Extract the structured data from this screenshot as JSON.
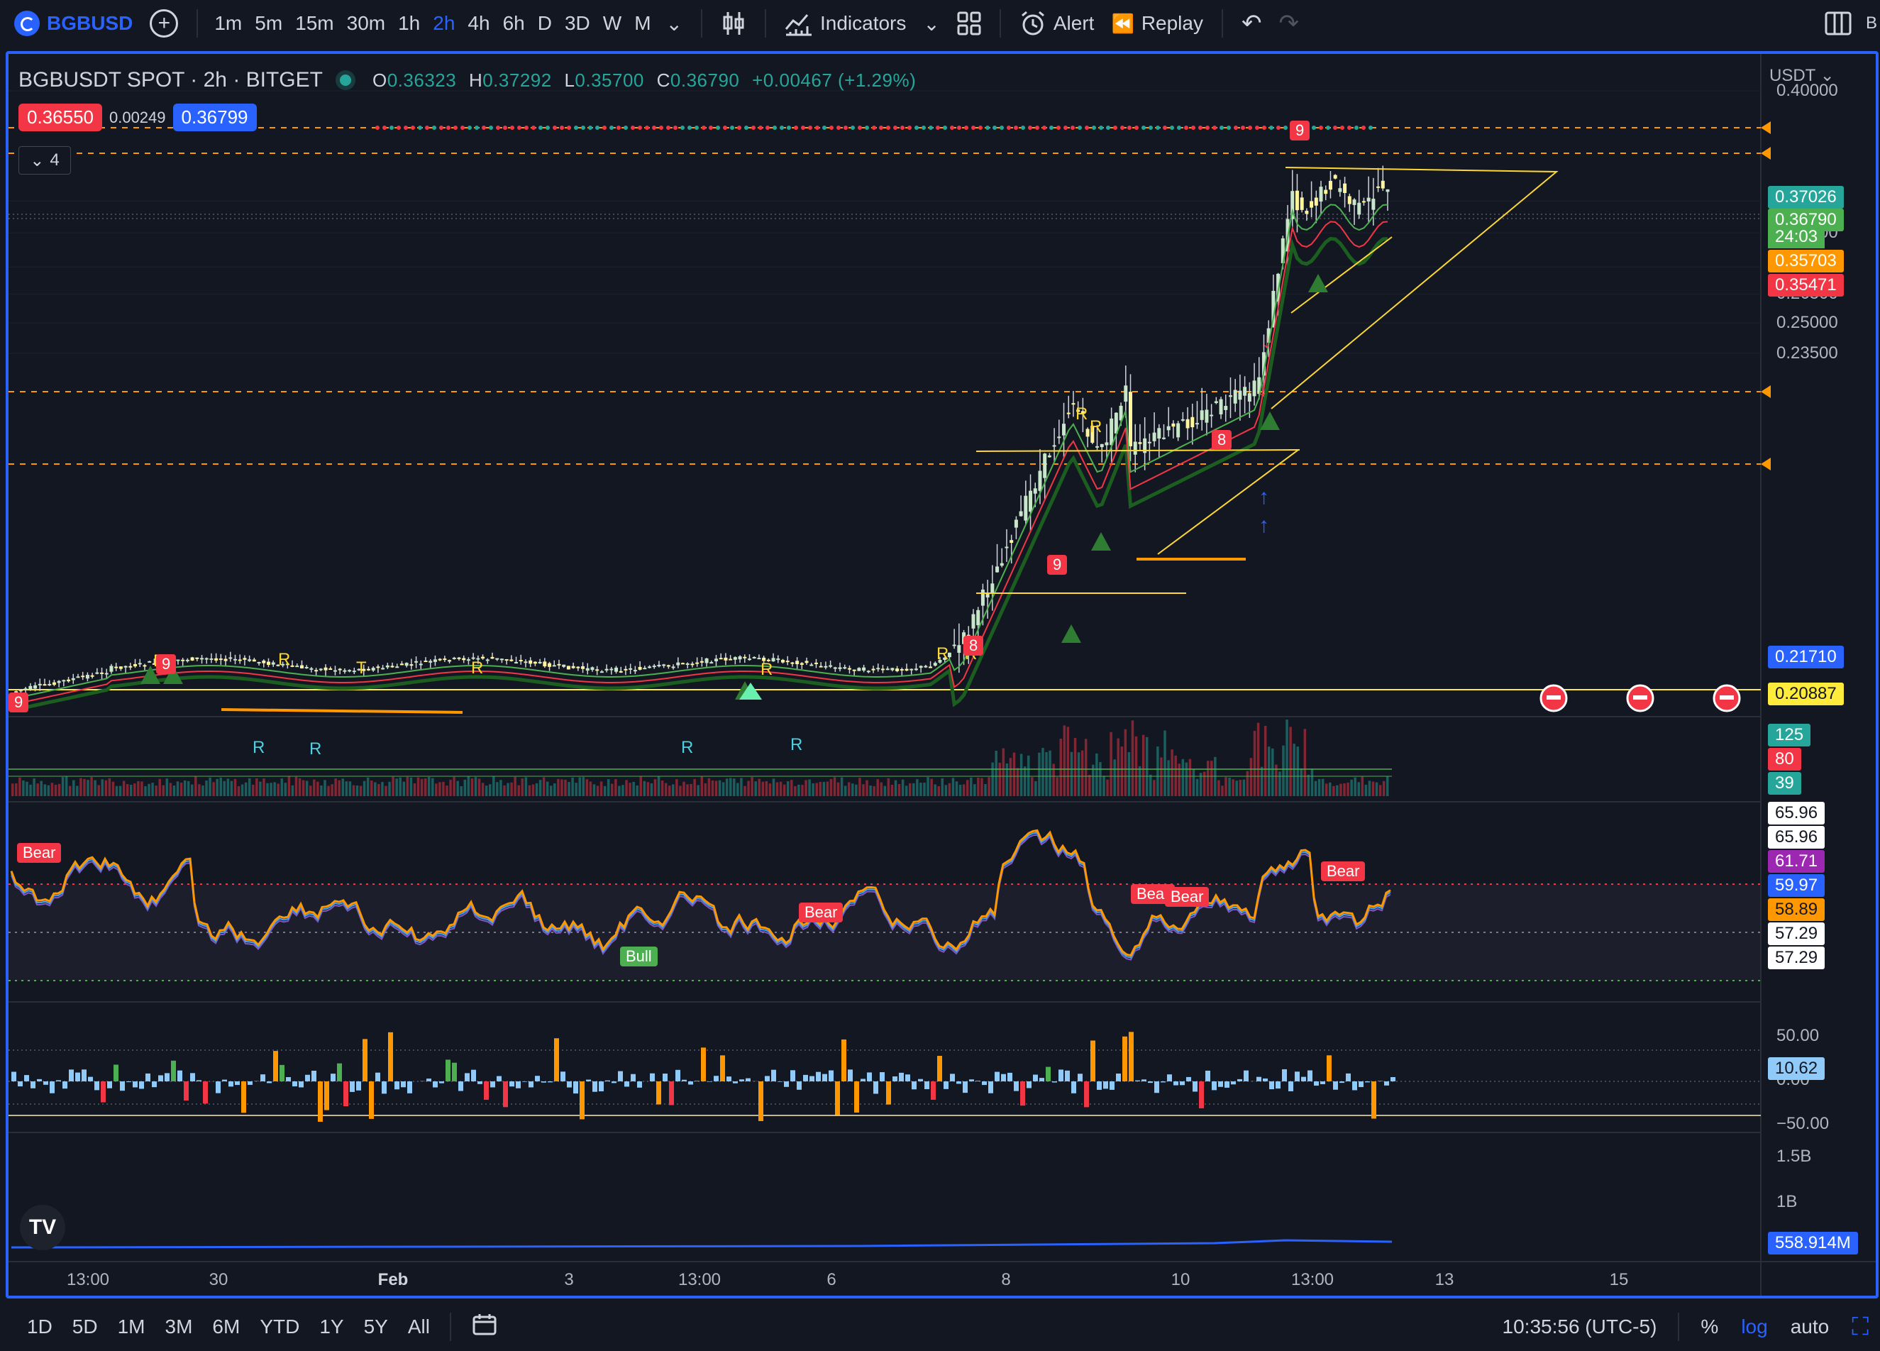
{
  "toolbar": {
    "symbol": "BGBUSD",
    "intervals": [
      "1m",
      "5m",
      "15m",
      "30m",
      "1h",
      "2h",
      "4h",
      "6h",
      "D",
      "3D",
      "W",
      "M"
    ],
    "active_interval": "2h",
    "indicators_label": "Indicators",
    "alert_label": "Alert",
    "replay_label": "Replay",
    "right_cut_text": "B",
    "icons": [
      "add-symbol-icon",
      "chevron-down-icon",
      "candles-icon",
      "indicators-icon",
      "layouts-icon",
      "alert-clock-icon",
      "replay-icon",
      "undo-icon",
      "redo-icon",
      "panels-icon"
    ]
  },
  "legend": {
    "title": "BGBUSDT SPOT · 2h · BITGET",
    "open_label": "O",
    "open": "0.36323",
    "high_label": "H",
    "high": "0.37292",
    "low_label": "L",
    "low": "0.35700",
    "close_label": "C",
    "close": "0.36790",
    "change": "+0.00467 (+1.29%)",
    "sell_price": "0.36550",
    "spread": "0.00249",
    "buy_price": "0.36799",
    "collapse_count": "4"
  },
  "currency": "USDT",
  "price_axis": {
    "labels": [
      {
        "text": "0.40000",
        "y": 0.4
      },
      {
        "text": "0.32000",
        "y": 0.32
      },
      {
        "text": "0.30000",
        "y": 0.3
      },
      {
        "text": "0.28000",
        "y": 0.28
      },
      {
        "text": "0.26500",
        "y": 0.265
      },
      {
        "text": "0.25000",
        "y": 0.25
      },
      {
        "text": "0.23500",
        "y": 0.235
      }
    ],
    "tags": [
      {
        "text": "0.37026",
        "bg": "#26a69a",
        "fg": "#ffffff"
      },
      {
        "text": "0.36790",
        "bg": "#4caf50",
        "fg": "#ffffff"
      },
      {
        "text": "24:03",
        "bg": "#4caf50",
        "fg": "#ffffff"
      },
      {
        "text": "0.35703",
        "bg": "#ff9800",
        "fg": "#ffffff"
      },
      {
        "text": "0.35471",
        "bg": "#f23645",
        "fg": "#ffffff"
      },
      {
        "text": "0.21710",
        "bg": "#2962ff",
        "fg": "#ffffff"
      },
      {
        "text": "0.20887",
        "bg": "#ffeb3b",
        "fg": "#131722"
      }
    ]
  },
  "volume_pane": {
    "tags": [
      {
        "text": "125",
        "bg": "#26a69a"
      },
      {
        "text": "80",
        "bg": "#f23645"
      },
      {
        "text": "39",
        "bg": "#26a69a"
      }
    ]
  },
  "rsi_pane": {
    "tags": [
      {
        "text": "65.96",
        "bg": "#ffffff",
        "fg": "#131722"
      },
      {
        "text": "65.96",
        "bg": "#ffffff",
        "fg": "#131722"
      },
      {
        "text": "61.71",
        "bg": "#9c27b0",
        "fg": "#ffffff"
      },
      {
        "text": "59.97",
        "bg": "#2962ff",
        "fg": "#ffffff"
      },
      {
        "text": "58.89",
        "bg": "#ff9800",
        "fg": "#131722"
      },
      {
        "text": "57.29",
        "bg": "#ffffff",
        "fg": "#131722"
      },
      {
        "text": "57.29",
        "bg": "#ffffff",
        "fg": "#131722"
      }
    ],
    "labels": [
      {
        "text": "Bear",
        "type": "bear"
      },
      {
        "text": "Bear",
        "type": "bear"
      },
      {
        "text": "Bear",
        "type": "bear"
      },
      {
        "text": "Bear",
        "type": "bear"
      },
      {
        "text": "Bear",
        "type": "bear"
      },
      {
        "text": "Bull",
        "type": "bull"
      }
    ]
  },
  "osc_pane": {
    "labels": [
      "50.00",
      "0.00",
      "−50.00"
    ],
    "tag": "10.62"
  },
  "obv_pane": {
    "labels": [
      "1.5B",
      "1B"
    ],
    "tag": "558.914M"
  },
  "time_axis": [
    "13:00",
    "30",
    "Feb",
    "3",
    "13:00",
    "6",
    "8",
    "10",
    "13:00",
    "13",
    "15"
  ],
  "chart_marks": {
    "r_labels": [
      "R",
      "R",
      "T",
      "R",
      "R",
      "R",
      "R",
      "R",
      "R",
      "R",
      "R",
      "R",
      "R"
    ],
    "count_badges": [
      "9",
      "9",
      "8",
      "9",
      "8",
      "9"
    ]
  },
  "bottombar": {
    "ranges": [
      "1D",
      "5D",
      "1M",
      "3M",
      "6M",
      "YTD",
      "1Y",
      "5Y",
      "All"
    ],
    "clock": "10:35:56 (UTC-5)",
    "percent": "%",
    "log": "log",
    "auto": "auto",
    "icons": [
      "date-range-icon",
      "fullscreen-icon"
    ]
  },
  "colors": {
    "bg": "#131722",
    "up": "#26a69a",
    "down": "#f23645",
    "accent": "#2962ff",
    "orange": "#ff9800",
    "yellow": "#ffeb3b",
    "rsi": "#ff9800",
    "rsi_ma": "#7e57c2"
  }
}
